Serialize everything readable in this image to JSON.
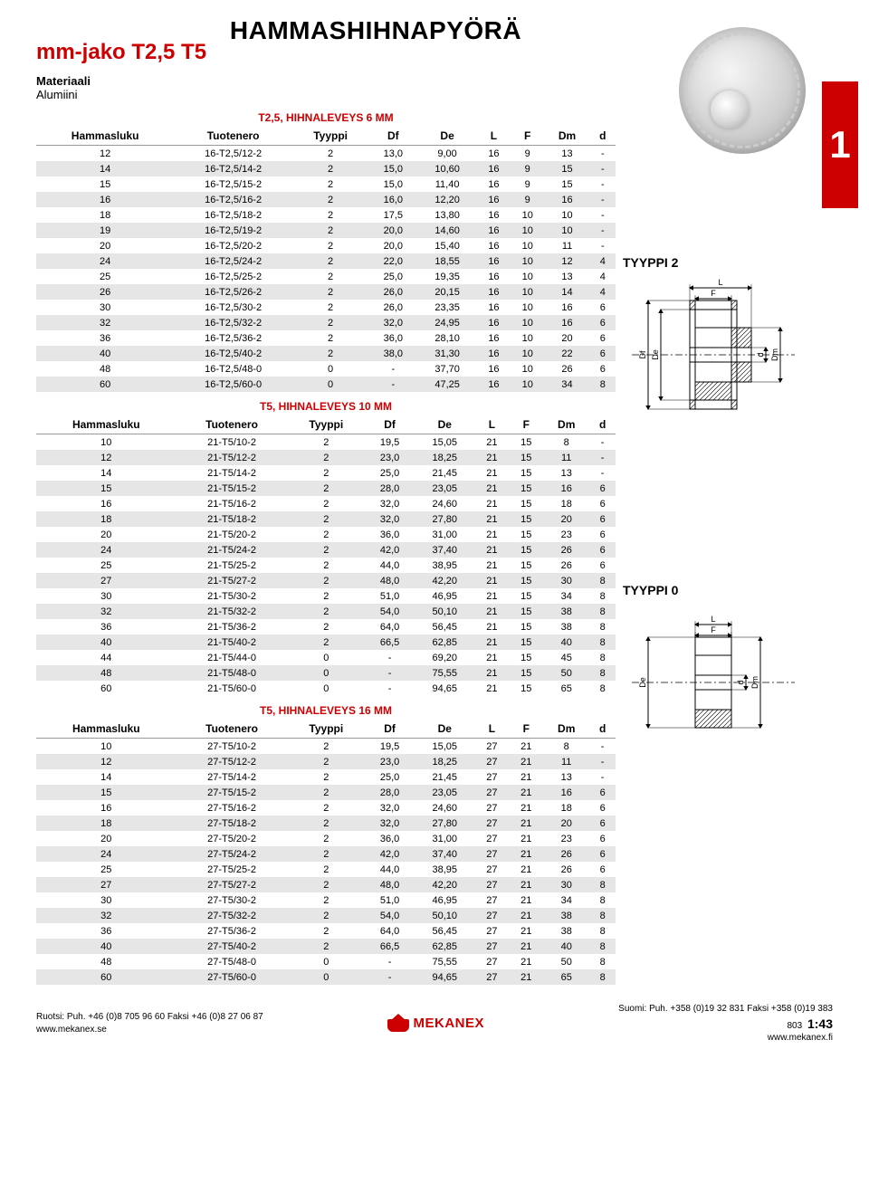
{
  "page_title": "HAMMASHIHNAPYÖRÄ",
  "subtitle": "mm-jako T2,5  T5",
  "material_label": "Materiaali",
  "material_value": "Alumiini",
  "side_tab": "1",
  "headers": [
    "Hammasluku",
    "Tuotenero",
    "Tyyppi",
    "Df",
    "De",
    "L",
    "F",
    "Dm",
    "d"
  ],
  "tables": [
    {
      "caption": "T2,5, HIHNALEVEYS 6 MM",
      "rows": [
        [
          "12",
          "16-T2,5/12-2",
          "2",
          "13,0",
          "9,00",
          "16",
          "9",
          "13",
          "-"
        ],
        [
          "14",
          "16-T2,5/14-2",
          "2",
          "15,0",
          "10,60",
          "16",
          "9",
          "15",
          "-"
        ],
        [
          "15",
          "16-T2,5/15-2",
          "2",
          "15,0",
          "11,40",
          "16",
          "9",
          "15",
          "-"
        ],
        [
          "16",
          "16-T2,5/16-2",
          "2",
          "16,0",
          "12,20",
          "16",
          "9",
          "16",
          "-"
        ],
        [
          "18",
          "16-T2,5/18-2",
          "2",
          "17,5",
          "13,80",
          "16",
          "10",
          "10",
          "-"
        ],
        [
          "19",
          "16-T2,5/19-2",
          "2",
          "20,0",
          "14,60",
          "16",
          "10",
          "10",
          "-"
        ],
        [
          "20",
          "16-T2,5/20-2",
          "2",
          "20,0",
          "15,40",
          "16",
          "10",
          "11",
          "-"
        ],
        [
          "24",
          "16-T2,5/24-2",
          "2",
          "22,0",
          "18,55",
          "16",
          "10",
          "12",
          "4"
        ],
        [
          "25",
          "16-T2,5/25-2",
          "2",
          "25,0",
          "19,35",
          "16",
          "10",
          "13",
          "4"
        ],
        [
          "26",
          "16-T2,5/26-2",
          "2",
          "26,0",
          "20,15",
          "16",
          "10",
          "14",
          "4"
        ],
        [
          "30",
          "16-T2,5/30-2",
          "2",
          "26,0",
          "23,35",
          "16",
          "10",
          "16",
          "6"
        ],
        [
          "32",
          "16-T2,5/32-2",
          "2",
          "32,0",
          "24,95",
          "16",
          "10",
          "16",
          "6"
        ],
        [
          "36",
          "16-T2,5/36-2",
          "2",
          "36,0",
          "28,10",
          "16",
          "10",
          "20",
          "6"
        ],
        [
          "40",
          "16-T2,5/40-2",
          "2",
          "38,0",
          "31,30",
          "16",
          "10",
          "22",
          "6"
        ],
        [
          "48",
          "16-T2,5/48-0",
          "0",
          "-",
          "37,70",
          "16",
          "10",
          "26",
          "6"
        ],
        [
          "60",
          "16-T2,5/60-0",
          "0",
          "-",
          "47,25",
          "16",
          "10",
          "34",
          "8"
        ]
      ]
    },
    {
      "caption": "T5, HIHNALEVEYS 10 MM",
      "rows": [
        [
          "10",
          "21-T5/10-2",
          "2",
          "19,5",
          "15,05",
          "21",
          "15",
          "8",
          "-"
        ],
        [
          "12",
          "21-T5/12-2",
          "2",
          "23,0",
          "18,25",
          "21",
          "15",
          "11",
          "-"
        ],
        [
          "14",
          "21-T5/14-2",
          "2",
          "25,0",
          "21,45",
          "21",
          "15",
          "13",
          "-"
        ],
        [
          "15",
          "21-T5/15-2",
          "2",
          "28,0",
          "23,05",
          "21",
          "15",
          "16",
          "6"
        ],
        [
          "16",
          "21-T5/16-2",
          "2",
          "32,0",
          "24,60",
          "21",
          "15",
          "18",
          "6"
        ],
        [
          "18",
          "21-T5/18-2",
          "2",
          "32,0",
          "27,80",
          "21",
          "15",
          "20",
          "6"
        ],
        [
          "20",
          "21-T5/20-2",
          "2",
          "36,0",
          "31,00",
          "21",
          "15",
          "23",
          "6"
        ],
        [
          "24",
          "21-T5/24-2",
          "2",
          "42,0",
          "37,40",
          "21",
          "15",
          "26",
          "6"
        ],
        [
          "25",
          "21-T5/25-2",
          "2",
          "44,0",
          "38,95",
          "21",
          "15",
          "26",
          "6"
        ],
        [
          "27",
          "21-T5/27-2",
          "2",
          "48,0",
          "42,20",
          "21",
          "15",
          "30",
          "8"
        ],
        [
          "30",
          "21-T5/30-2",
          "2",
          "51,0",
          "46,95",
          "21",
          "15",
          "34",
          "8"
        ],
        [
          "32",
          "21-T5/32-2",
          "2",
          "54,0",
          "50,10",
          "21",
          "15",
          "38",
          "8"
        ],
        [
          "36",
          "21-T5/36-2",
          "2",
          "64,0",
          "56,45",
          "21",
          "15",
          "38",
          "8"
        ],
        [
          "40",
          "21-T5/40-2",
          "2",
          "66,5",
          "62,85",
          "21",
          "15",
          "40",
          "8"
        ],
        [
          "44",
          "21-T5/44-0",
          "0",
          "-",
          "69,20",
          "21",
          "15",
          "45",
          "8"
        ],
        [
          "48",
          "21-T5/48-0",
          "0",
          "-",
          "75,55",
          "21",
          "15",
          "50",
          "8"
        ],
        [
          "60",
          "21-T5/60-0",
          "0",
          "-",
          "94,65",
          "21",
          "15",
          "65",
          "8"
        ]
      ]
    },
    {
      "caption": "T5, HIHNALEVEYS 16 MM",
      "rows": [
        [
          "10",
          "27-T5/10-2",
          "2",
          "19,5",
          "15,05",
          "27",
          "21",
          "8",
          "-"
        ],
        [
          "12",
          "27-T5/12-2",
          "2",
          "23,0",
          "18,25",
          "27",
          "21",
          "11",
          "-"
        ],
        [
          "14",
          "27-T5/14-2",
          "2",
          "25,0",
          "21,45",
          "27",
          "21",
          "13",
          "-"
        ],
        [
          "15",
          "27-T5/15-2",
          "2",
          "28,0",
          "23,05",
          "27",
          "21",
          "16",
          "6"
        ],
        [
          "16",
          "27-T5/16-2",
          "2",
          "32,0",
          "24,60",
          "27",
          "21",
          "18",
          "6"
        ],
        [
          "18",
          "27-T5/18-2",
          "2",
          "32,0",
          "27,80",
          "27",
          "21",
          "20",
          "6"
        ],
        [
          "20",
          "27-T5/20-2",
          "2",
          "36,0",
          "31,00",
          "27",
          "21",
          "23",
          "6"
        ],
        [
          "24",
          "27-T5/24-2",
          "2",
          "42,0",
          "37,40",
          "27",
          "21",
          "26",
          "6"
        ],
        [
          "25",
          "27-T5/25-2",
          "2",
          "44,0",
          "38,95",
          "27",
          "21",
          "26",
          "6"
        ],
        [
          "27",
          "27-T5/27-2",
          "2",
          "48,0",
          "42,20",
          "27",
          "21",
          "30",
          "8"
        ],
        [
          "30",
          "27-T5/30-2",
          "2",
          "51,0",
          "46,95",
          "27",
          "21",
          "34",
          "8"
        ],
        [
          "32",
          "27-T5/32-2",
          "2",
          "54,0",
          "50,10",
          "27",
          "21",
          "38",
          "8"
        ],
        [
          "36",
          "27-T5/36-2",
          "2",
          "64,0",
          "56,45",
          "27",
          "21",
          "38",
          "8"
        ],
        [
          "40",
          "27-T5/40-2",
          "2",
          "66,5",
          "62,85",
          "27",
          "21",
          "40",
          "8"
        ],
        [
          "48",
          "27-T5/48-0",
          "0",
          "-",
          "75,55",
          "27",
          "21",
          "50",
          "8"
        ],
        [
          "60",
          "27-T5/60-0",
          "0",
          "-",
          "94,65",
          "27",
          "21",
          "65",
          "8"
        ]
      ]
    }
  ],
  "diagrams": [
    {
      "label": "TYYPPI 2",
      "dims": [
        "L",
        "F",
        "Df",
        "De",
        "d",
        "Dm"
      ],
      "has_flange": true
    },
    {
      "label": "TYYPPI 0",
      "dims": [
        "L",
        "F",
        "De",
        "d",
        "Dm"
      ],
      "has_flange": false
    }
  ],
  "diagram_style": {
    "stroke": "#000",
    "stroke_width": 1,
    "hatch_angle": 45,
    "hatch_spacing": 5,
    "arrow_size": 4,
    "font_size": 9
  },
  "footer": {
    "left_line1": "Ruotsi: Puh. +46 (0)8 705 96 60 Faksi +46 (0)8 27 06 87",
    "left_line2": "www.mekanex.se",
    "brand": "MEKANEX",
    "right_line1_prefix": "Suomi: Puh. +358 (0)19 32 831 Faksi +358 (0)19 383 803",
    "right_line2": "www.mekanex.fi",
    "page_number": "1:43"
  }
}
